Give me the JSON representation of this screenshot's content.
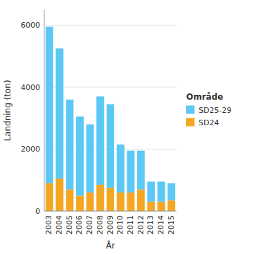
{
  "chart_data": {
    "type": "bar",
    "stacked": true,
    "x_label": "År",
    "y_label": "Landning (ton)",
    "legend_title": "Område",
    "legend": "right",
    "grid": true,
    "categories": [
      "2003",
      "2004",
      "2005",
      "2006",
      "2007",
      "2008",
      "2009",
      "2010",
      "2011",
      "2012",
      "2013",
      "2014",
      "2015"
    ],
    "series": [
      {
        "name": "SD24",
        "color": "#F5A623",
        "values": [
          900,
          1050,
          700,
          500,
          600,
          850,
          750,
          600,
          600,
          700,
          300,
          300,
          350
        ]
      },
      {
        "name": "SD25-29",
        "color": "#5BC8F5",
        "values": [
          5050,
          4200,
          2900,
          2550,
          2200,
          2850,
          2700,
          1550,
          1350,
          1250,
          650,
          650,
          550
        ]
      }
    ],
    "ylim": [
      0,
      6500
    ],
    "yticks": [
      0,
      2000,
      4000,
      6000
    ]
  }
}
